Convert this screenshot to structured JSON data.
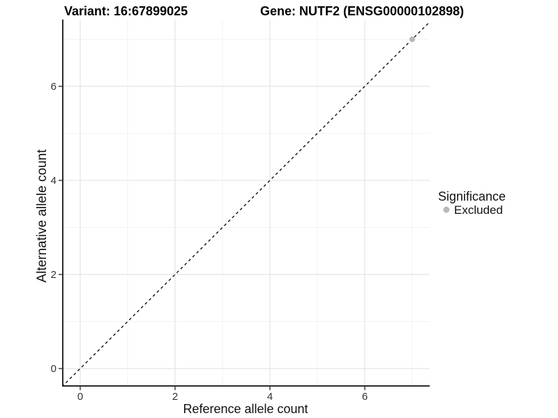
{
  "chart_data": {
    "type": "scatter",
    "title_left": "Variant: 16:67899025",
    "title_right": "Gene: NUTF2 (ENSG00000102898)",
    "xlabel": "Reference allele count",
    "ylabel": "Alternative allele count",
    "x_major_ticks": [
      0,
      2,
      4,
      6
    ],
    "x_minor_ticks": [
      1,
      3,
      5,
      7
    ],
    "y_major_ticks": [
      0,
      2,
      4,
      6
    ],
    "y_minor_ticks": [
      1,
      3,
      5,
      7
    ],
    "xlim": [
      -0.368,
      7.368
    ],
    "ylim": [
      -0.37,
      7.42
    ],
    "grid": "major+minor, light gray on white panel",
    "reference_line": {
      "type": "identity",
      "slope": 1,
      "intercept": 0,
      "style": "dashed",
      "color": "#000000"
    },
    "series": [
      {
        "name": "Excluded",
        "color": "#B8B8B8",
        "points": [
          {
            "x": 7,
            "y": 7
          }
        ]
      }
    ],
    "legend": {
      "position": "right",
      "title": "Significance",
      "entries": [
        {
          "label": "Excluded",
          "color": "#B8B8B8"
        }
      ]
    }
  },
  "colors": {
    "background": "#ffffff",
    "panel_background": "#ffffff",
    "grid_major": "#e4e4e4",
    "grid_minor": "#f2f2f2",
    "axis_line": "#2b2b2b",
    "tick_mark": "#333333",
    "tick_text": "#333333",
    "point_excluded": "#B8B8B8",
    "reference_line": "#000000"
  }
}
